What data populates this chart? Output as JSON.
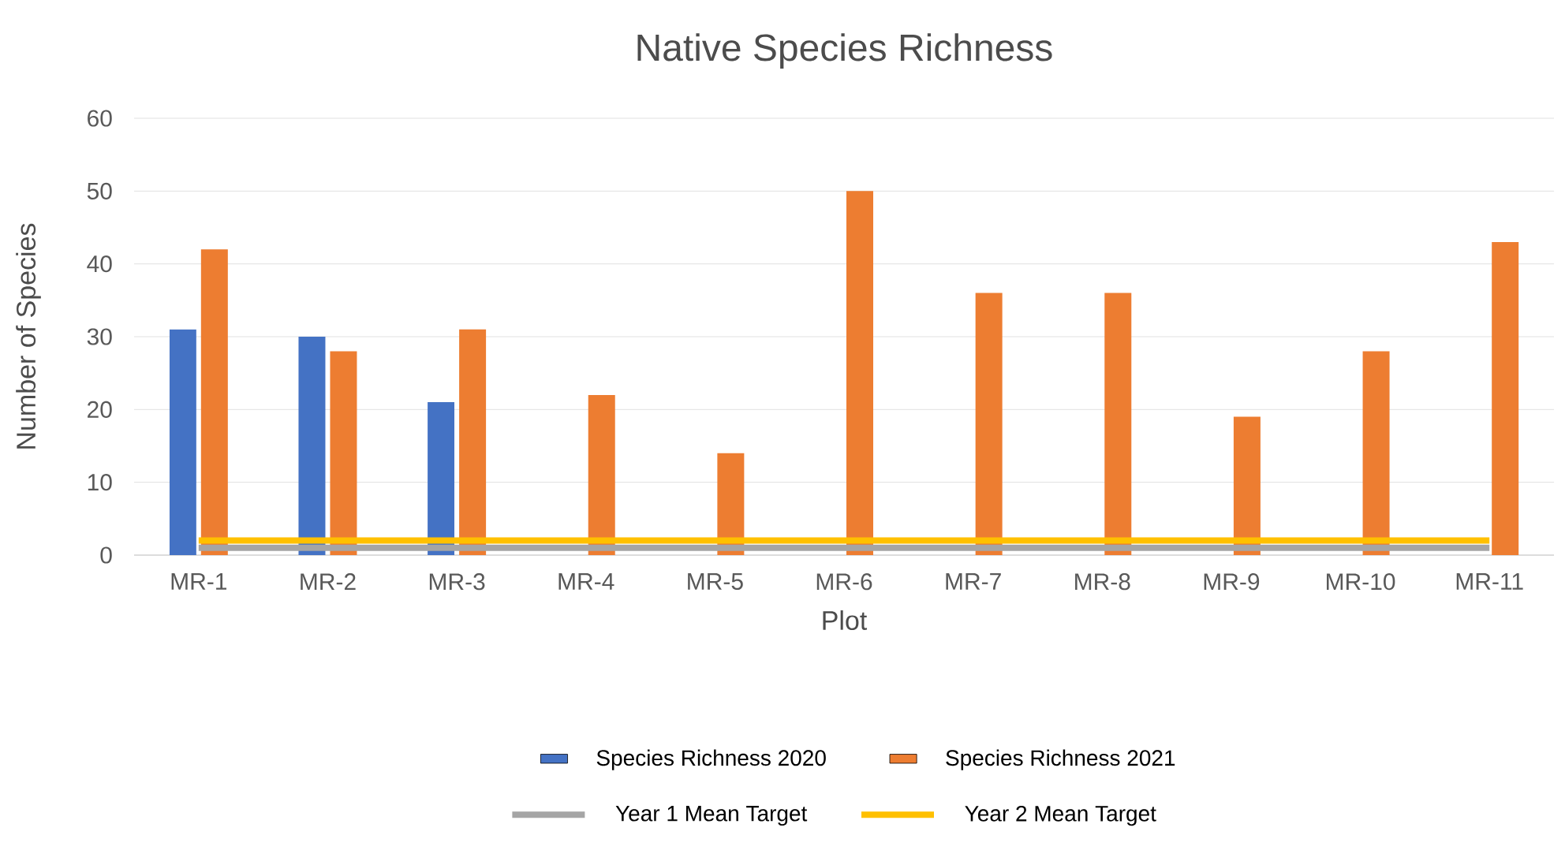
{
  "chart_data": {
    "type": "bar",
    "title": "Native Species Richness",
    "xlabel": "Plot",
    "ylabel": "Number of Species",
    "categories": [
      "MR-1",
      "MR-2",
      "MR-3",
      "MR-4",
      "MR-5",
      "MR-6",
      "MR-7",
      "MR-8",
      "MR-9",
      "MR-10",
      "MR-11"
    ],
    "series": [
      {
        "name": "Species Richness 2020",
        "color": "#4472c4",
        "values": [
          31,
          30,
          21,
          null,
          null,
          null,
          null,
          null,
          null,
          null,
          null
        ]
      },
      {
        "name": "Species Richness 2021",
        "color": "#ed7d31",
        "values": [
          42,
          28,
          31,
          22,
          14,
          50,
          36,
          36,
          19,
          28,
          43
        ]
      },
      {
        "name": "Year 1 Mean Target",
        "type": "line",
        "color": "#a5a5a5",
        "values": [
          1,
          1,
          1,
          1,
          1,
          1,
          1,
          1,
          1,
          1,
          1
        ]
      },
      {
        "name": "Year 2 Mean Target",
        "type": "line",
        "color": "#ffc000",
        "values": [
          2,
          2,
          2,
          2,
          2,
          2,
          2,
          2,
          2,
          2,
          2
        ]
      }
    ],
    "ylim": [
      0,
      60
    ],
    "yticks": [
      0,
      10,
      20,
      30,
      40,
      50,
      60
    ],
    "grid": "y",
    "legend": "bottom"
  }
}
